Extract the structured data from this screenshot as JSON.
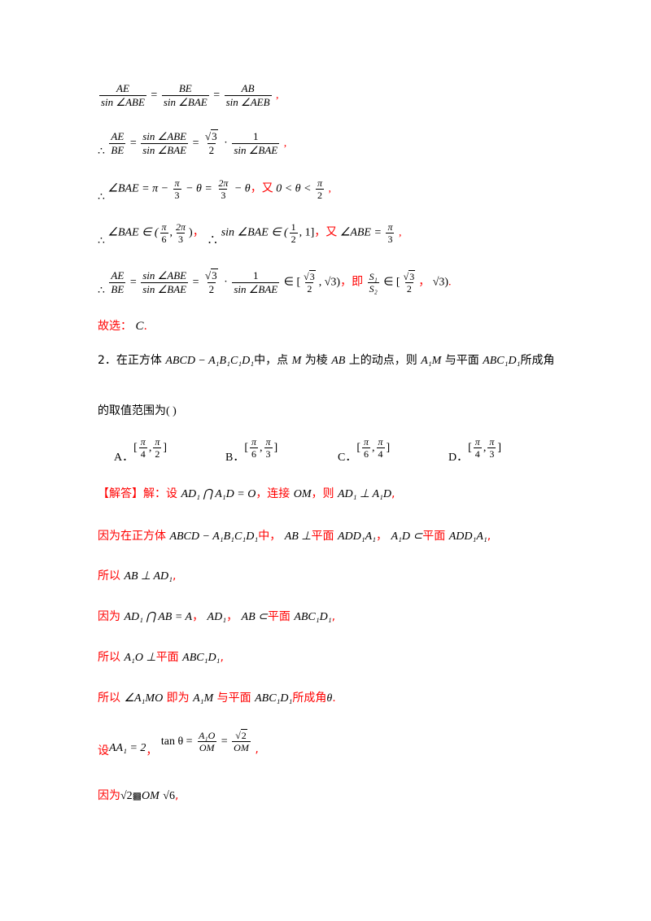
{
  "line1": {
    "f1_num": "AE",
    "f1_den": "sin ∠ABE",
    "f2_num": "BE",
    "f2_den": "sin ∠BAE",
    "f3_num": "AB",
    "f3_den": "sin ∠AEB",
    "tail": ","
  },
  "line2": {
    "therefore": "∴",
    "f1_num": "AE",
    "f1_den": "BE",
    "f2_num": "sin ∠ABE",
    "f2_den": "sin ∠BAE",
    "sqrt3": "3",
    "two": "2",
    "dot": "·",
    "f4_num": "1",
    "f4_den": "sin ∠BAE",
    "tail": ","
  },
  "line3": {
    "therefore": "∴",
    "expr_a": "∠BAE = π −",
    "pi": "π",
    "three": "3",
    "expr_b": "− θ =",
    "twopi": "2π",
    "expr_c": "− θ",
    "comma": "，",
    "you": "又",
    "cond": "0 < θ <",
    "pi2": "π",
    "two": "2",
    "tail": ","
  },
  "line4": {
    "therefore": "∴",
    "set1_a": "∠BAE ∈ (",
    "pi": "π",
    "six": "6",
    "twopi": "2π",
    "three": "3",
    "close": ")",
    "comma1": "，",
    "therefore2": "∴",
    "set2_a": "sin ∠BAE ∈ (",
    "one": "1",
    "two": "2",
    "set2_b": ", 1]",
    "comma2": "，",
    "you": "又",
    "abe": "∠ABE =",
    "pi3": "π",
    "three2": "3",
    "tail": ","
  },
  "line5": {
    "therefore": "∴",
    "f1_num": "AE",
    "f1_den": "BE",
    "f2_num": "sin ∠ABE",
    "f2_den": "sin ∠BAE",
    "sqrt3": "3",
    "two": "2",
    "dot": "·",
    "f4_num": "1",
    "f4_den": "sin ∠BAE",
    "in": "∈ [",
    "sqrt3b": "3",
    "twob": "2",
    "end1": ", √3)",
    "comma": "，",
    "ji": "即",
    "s_num": "S₁",
    "s_den": "S₂",
    "in2": "∈ [",
    "sqrt3c": "3",
    "twoc": "2",
    "comma2": "，",
    "end2": "√3)",
    "tail": "."
  },
  "answer_line": {
    "label": "故选：",
    "choice": "C",
    "tail": "."
  },
  "question2": {
    "number": "2．",
    "text_a": "在正方体",
    "cube": "ABCD − A₁B₁C₁D₁",
    "text_b": "中，点",
    "m": "M",
    "text_c": "为棱",
    "ab": "AB",
    "text_d": "上的动点，则",
    "a1m": "A₁M",
    "text_e": "与平面",
    "plane": "ABC₁D₁",
    "text_f": "所成角",
    "line2": "的取值范围为",
    "paren": "(        )"
  },
  "options": [
    {
      "letter": "A．",
      "lb": "[",
      "p1": "π",
      "d1": "4",
      "p2": "π",
      "d2": "2",
      "rb": "]"
    },
    {
      "letter": "B．",
      "lb": "[",
      "p1": "π",
      "d1": "6",
      "p2": "π",
      "d2": "3",
      "rb": "]"
    },
    {
      "letter": "C．",
      "lb": "[",
      "p1": "π",
      "d1": "6",
      "p2": "π",
      "d2": "4",
      "rb": "]"
    },
    {
      "letter": "D．",
      "lb": "[",
      "p1": "π",
      "d1": "4",
      "p2": "π",
      "d2": "3",
      "rb": "]"
    }
  ],
  "solution": {
    "s1_head": "【解答】",
    "s1_a": "解：设",
    "s1_m1": "AD₁ ⋂ A₁D = O",
    "s1_b": "，连接",
    "s1_m2": "OM",
    "s1_c": "，则",
    "s1_m3": "AD₁ ⊥ A₁D",
    "s1_d": ",",
    "s2_a": "因为在正方体",
    "s2_m1": "ABCD − A₁B₁C₁D₁",
    "s2_b": "中，",
    "s2_m2": "AB ⊥",
    "s2_c": "平面",
    "s2_m3": "ADD₁A₁",
    "s2_d": "，",
    "s2_m4": "A₁D ⊂",
    "s2_e": "平面",
    "s2_m5": "ADD₁A₁",
    "s2_f": ",",
    "s3_a": "所以",
    "s3_m1": "AB ⊥ AD₁",
    "s3_b": ",",
    "s4_a": "因为",
    "s4_m1": "AD₁ ⋂ AB = A",
    "s4_b": "，",
    "s4_m2": "AD₁",
    "s4_c": "，",
    "s4_m3": "AB ⊂",
    "s4_d": "平面",
    "s4_m4": "ABC₁D₁",
    "s4_e": ",",
    "s5_a": "所以",
    "s5_m1": "A₁O ⊥",
    "s5_b": "平面",
    "s5_m2": "ABC₁D₁",
    "s5_c": ",",
    "s6_a": "所以",
    "s6_m1": "∠A₁MO",
    "s6_b": "即为",
    "s6_m2": "A₁M",
    "s6_c": "与平面",
    "s6_m3": "ABC₁D₁",
    "s6_d": "所成角",
    "s6_m4": "θ",
    "s6_e": ".",
    "s7_a": "设",
    "s7_m1": "AA₁ = 2",
    "s7_b": "，",
    "s7_tan": "tan θ =",
    "s7_f1n": "A₁O",
    "s7_f1d": "OM",
    "s7_eq": "=",
    "s7_sqrt": "2",
    "s7_f2d": "OM",
    "s7_c": ",",
    "s8_a": "因为",
    "s8_m1": "√2",
    "s8_glyph": "▩",
    "s8_m2": "OM",
    "s8_m3": "√6",
    "s8_c": ","
  }
}
